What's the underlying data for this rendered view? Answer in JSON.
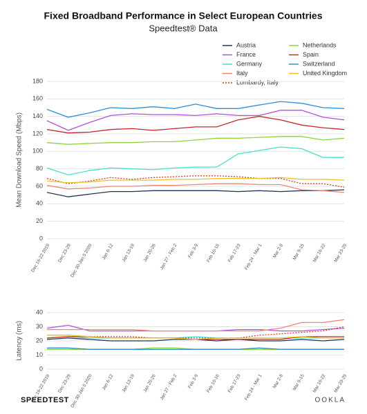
{
  "chart_data": [
    {
      "type": "line",
      "title": "Fixed Broadband Performance in Select European Countries",
      "subtitle": "Speedtest® Data",
      "y_label": "Mean Download Speed (Mbps)",
      "categories": [
        "Dec 16-22 2019",
        "Dec 23-29",
        "Dec 30-Jan 5 2020",
        "Jan 6-12",
        "Jan 13-19",
        "Jan 20-26",
        "Jan 27 - Feb 2",
        "Feb 3-9",
        "Feb 10-16",
        "Feb 17-23",
        "Feb 24 - Mar 1",
        "Mar 2-8",
        "Mar 9-15",
        "Mar 16-22",
        "Mar 23-29"
      ],
      "ylim": [
        0,
        180
      ],
      "yticks": [
        0,
        20,
        40,
        60,
        80,
        100,
        120,
        140,
        160,
        180
      ],
      "grid": true,
      "series": [
        {
          "name": "Austria",
          "color": "#1d3557",
          "values": [
            53,
            48,
            51,
            54,
            54,
            55,
            55,
            55,
            55,
            54,
            55,
            54,
            55,
            55,
            56
          ]
        },
        {
          "name": "France",
          "color": "#b24fd8",
          "values": [
            135,
            124,
            133,
            141,
            143,
            142,
            142,
            141,
            143,
            141,
            141,
            147,
            147,
            139,
            136
          ]
        },
        {
          "name": "Germany",
          "color": "#45e0cf",
          "values": [
            81,
            73,
            78,
            81,
            80,
            79,
            81,
            82,
            82,
            97,
            101,
            105,
            103,
            93,
            93
          ]
        },
        {
          "name": "Italy",
          "color": "#f08474",
          "values": [
            61,
            57,
            58,
            60,
            60,
            61,
            61,
            62,
            63,
            63,
            62,
            62,
            56,
            55,
            53
          ]
        },
        {
          "name": "Lombardy, Italy",
          "color": "#d9381e",
          "dashed": true,
          "values": [
            69,
            63,
            66,
            70,
            68,
            70,
            71,
            72,
            72,
            71,
            69,
            69,
            63,
            63,
            59
          ]
        },
        {
          "name": "Netherlands",
          "color": "#8fd43a",
          "values": [
            110,
            108,
            109,
            110,
            110,
            111,
            111,
            113,
            115,
            115,
            116,
            117,
            117,
            113,
            115
          ]
        },
        {
          "name": "Spain",
          "color": "#c8242b",
          "values": [
            125,
            121,
            122,
            125,
            126,
            124,
            126,
            128,
            128,
            136,
            140,
            136,
            130,
            127,
            125
          ]
        },
        {
          "name": "Switzerland",
          "color": "#2a8fd6",
          "values": [
            148,
            139,
            144,
            150,
            149,
            151,
            149,
            154,
            149,
            149,
            153,
            157,
            155,
            150,
            149
          ]
        },
        {
          "name": "United Kingdom",
          "color": "#f0c020",
          "values": [
            66,
            64,
            65,
            67,
            67,
            67,
            68,
            68,
            69,
            69,
            69,
            70,
            68,
            68,
            67
          ]
        }
      ]
    },
    {
      "type": "line",
      "y_label": "Latency (ms)",
      "categories": [
        "Dec 16-22 2019",
        "Dec 23-29",
        "Dec 30-Jan 5 2020",
        "Jan 6-12",
        "Jan 13-19",
        "Jan 20-26",
        "Jan 27 - Feb 2",
        "Feb 3-9",
        "Feb 10-16",
        "Feb 17-23",
        "Feb 24 - Mar 1",
        "Mar 2-8",
        "Mar 9-15",
        "Mar 16-22",
        "Mar 23-29"
      ],
      "ylim": [
        0,
        40
      ],
      "yticks": [
        0,
        10,
        20,
        30,
        40
      ],
      "grid": true,
      "series": [
        {
          "color": "#1d3557",
          "values": [
            21,
            22,
            21,
            20,
            20,
            20,
            21,
            21,
            20,
            21,
            20,
            20,
            21,
            20,
            21
          ]
        },
        {
          "color": "#b24fd8",
          "values": [
            29,
            31,
            27,
            27,
            27,
            27,
            27,
            27,
            27,
            28,
            28,
            27,
            27,
            28,
            29
          ]
        },
        {
          "color": "#45e0cf",
          "values": [
            22,
            23,
            22,
            22,
            22,
            22,
            22,
            23,
            22,
            22,
            22,
            22,
            22,
            22,
            22
          ]
        },
        {
          "color": "#f08474",
          "values": [
            28,
            28,
            28,
            28,
            28,
            27,
            27,
            27,
            27,
            27,
            27,
            29,
            33,
            33,
            35
          ]
        },
        {
          "color": "#d9381e",
          "dashed": true,
          "values": [
            24,
            24,
            23,
            23,
            23,
            22,
            22,
            22,
            22,
            22,
            24,
            25,
            26,
            27,
            30
          ]
        },
        {
          "color": "#8fd43a",
          "values": [
            14,
            14,
            14,
            14,
            14,
            15,
            15,
            14,
            14,
            14,
            14,
            14,
            14,
            14,
            14
          ]
        },
        {
          "color": "#c8242b",
          "values": [
            22,
            23,
            23,
            22,
            22,
            22,
            22,
            21,
            21,
            21,
            21,
            21,
            23,
            23,
            23
          ]
        },
        {
          "color": "#2a8fd6",
          "values": [
            15,
            15,
            14,
            14,
            14,
            14,
            14,
            14,
            14,
            14,
            15,
            14,
            14,
            14,
            14
          ]
        },
        {
          "color": "#f0c020",
          "values": [
            24,
            24,
            23,
            22,
            22,
            22,
            22,
            21,
            22,
            22,
            22,
            22,
            23,
            22,
            22
          ]
        }
      ]
    }
  ],
  "footer": {
    "left": "SPEEDTEST",
    "right": "OOKLA"
  }
}
